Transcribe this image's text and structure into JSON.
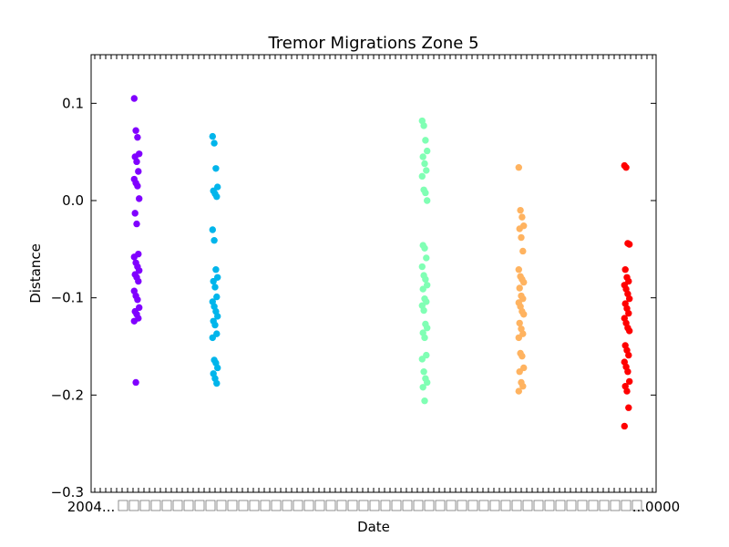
{
  "chart_data": {
    "type": "scatter",
    "title": "Tremor Migrations Zone 5",
    "xlabel": "Date",
    "ylabel": "Distance",
    "ylim": [
      -0.3,
      0.15
    ],
    "yticks": [
      0.1,
      0.0,
      -0.1,
      -0.2,
      -0.3
    ],
    "ytick_labels": [
      "0.1",
      "0.0",
      "−0.1",
      "−0.2",
      "−0.3"
    ],
    "xtick_labels": [
      "2004...",
      "...0000"
    ],
    "grid": false,
    "legend": "none",
    "series": [
      {
        "color": "#8000ff",
        "values": [
          0.105,
          0.072,
          0.065,
          0.048,
          0.045,
          0.04,
          0.03,
          0.022,
          0.018,
          0.015,
          0.002,
          -0.013,
          -0.024,
          -0.055,
          -0.058,
          -0.064,
          -0.068,
          -0.072,
          -0.076,
          -0.079,
          -0.083,
          -0.093,
          -0.098,
          -0.102,
          -0.11,
          -0.114,
          -0.117,
          -0.121,
          -0.124,
          -0.187
        ]
      },
      {
        "color": "#00b5eb",
        "values": [
          0.066,
          0.059,
          0.033,
          0.014,
          0.01,
          0.007,
          0.004,
          -0.03,
          -0.041,
          -0.071,
          -0.079,
          -0.083,
          -0.089,
          -0.099,
          -0.104,
          -0.109,
          -0.114,
          -0.119,
          -0.124,
          -0.128,
          -0.137,
          -0.141,
          -0.164,
          -0.167,
          -0.172,
          -0.178,
          -0.183,
          -0.188
        ]
      },
      {
        "color": "#80ffb4",
        "values": [
          0.082,
          0.077,
          0.062,
          0.051,
          0.045,
          0.038,
          0.031,
          0.025,
          0.011,
          0.008,
          0.0,
          -0.046,
          -0.049,
          -0.059,
          -0.068,
          -0.077,
          -0.081,
          -0.087,
          -0.091,
          -0.101,
          -0.104,
          -0.108,
          -0.113,
          -0.127,
          -0.131,
          -0.136,
          -0.141,
          -0.159,
          -0.163,
          -0.176,
          -0.183,
          -0.187,
          -0.192,
          -0.206
        ]
      },
      {
        "color": "#ffb360",
        "values": [
          0.034,
          -0.01,
          -0.017,
          -0.026,
          -0.029,
          -0.038,
          -0.052,
          -0.071,
          -0.078,
          -0.081,
          -0.084,
          -0.09,
          -0.098,
          -0.101,
          -0.105,
          -0.109,
          -0.114,
          -0.117,
          -0.126,
          -0.132,
          -0.137,
          -0.141,
          -0.157,
          -0.16,
          -0.172,
          -0.176,
          -0.187,
          -0.191,
          -0.196
        ]
      },
      {
        "color": "#ff0000",
        "values": [
          0.036,
          0.034,
          -0.044,
          -0.045,
          -0.071,
          -0.079,
          -0.083,
          -0.087,
          -0.091,
          -0.096,
          -0.101,
          -0.106,
          -0.111,
          -0.116,
          -0.121,
          -0.126,
          -0.131,
          -0.134,
          -0.149,
          -0.154,
          -0.159,
          -0.166,
          -0.171,
          -0.176,
          -0.186,
          -0.191,
          -0.196,
          -0.213,
          -0.232
        ]
      }
    ]
  }
}
